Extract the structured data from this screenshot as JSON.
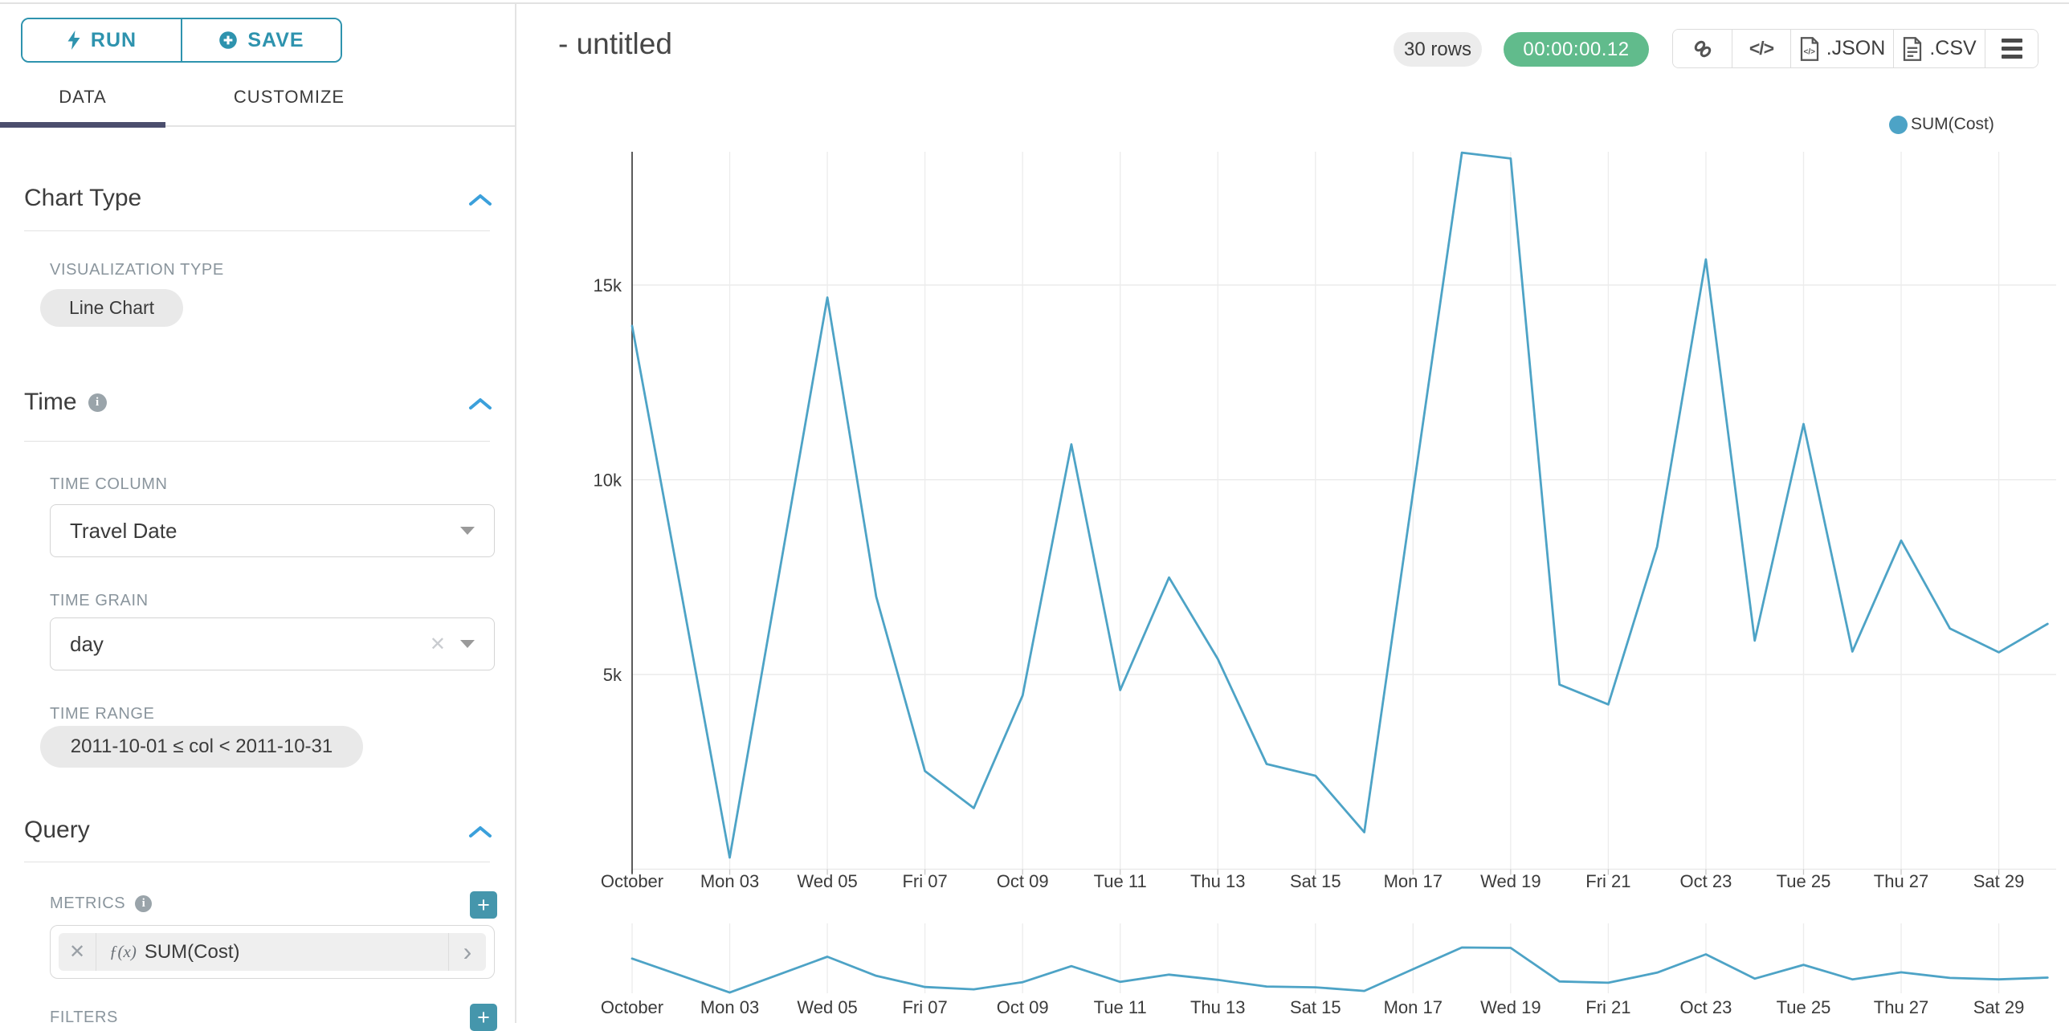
{
  "sidebar": {
    "run_button": "RUN",
    "save_button": "SAVE",
    "tabs": [
      {
        "label": "DATA",
        "active": true
      },
      {
        "label": "CUSTOMIZE",
        "active": false
      }
    ],
    "chart_type_section": {
      "title": "Chart Type",
      "viz_type_label": "VISUALIZATION TYPE",
      "viz_type_value": "Line Chart"
    },
    "time_section": {
      "title": "Time",
      "time_column_label": "TIME COLUMN",
      "time_column_value": "Travel Date",
      "time_grain_label": "TIME GRAIN",
      "time_grain_value": "day",
      "time_range_label": "TIME RANGE",
      "time_range_value": "2011-10-01 ≤ col < 2011-10-31"
    },
    "query_section": {
      "title": "Query",
      "metrics_label": "METRICS",
      "add_button": "+",
      "metric_fx": "ƒ(x)",
      "metric_value": "SUM(Cost)",
      "filters_label": "FILTERS"
    }
  },
  "header": {
    "title": "- untitled",
    "row_count": "30 rows",
    "query_duration": "00:00:00.12",
    "export_json": ".JSON",
    "export_csv": ".CSV"
  },
  "icons": [
    "bolt-icon",
    "plus-circle-icon",
    "chevron-up-icon",
    "info-icon",
    "caret-down-icon",
    "clear-x-icon",
    "chevron-right-icon",
    "link-icon",
    "code-icon",
    "file-json-icon",
    "file-csv-icon",
    "menu-icon",
    "legend-dot"
  ],
  "colors": {
    "accent_teal": "#2e93ae",
    "plus_button_teal": "#4596ac",
    "chevron_blue": "#3ba0db",
    "active_tab_indicator": "#4b4e6d",
    "timer_green": "#61bb8c",
    "line_color": "#4da3c6",
    "pill_gray": "#ececec"
  },
  "chart_data": {
    "type": "line",
    "title": "- untitled",
    "legend_position": "top-right",
    "grid": true,
    "x_axis": {
      "tick_labels": [
        "October",
        "Mon 03",
        "Wed 05",
        "Fri 07",
        "Oct 09",
        "Tue 11",
        "Thu 13",
        "Sat 15",
        "Mon 17",
        "Wed 19",
        "Fri 21",
        "Oct 23",
        "Tue 25",
        "Thu 27",
        "Sat 29"
      ],
      "tick_step_days": 2,
      "domain": [
        "2011-10-01",
        "2011-10-30"
      ]
    },
    "y_axis": {
      "ticks": [
        {
          "label": "5k",
          "value": 5000
        },
        {
          "label": "10k",
          "value": 10000
        },
        {
          "label": "15k",
          "value": 15000
        }
      ],
      "min": 0,
      "max": 18400
    },
    "dates": [
      "2011-10-01",
      "2011-10-02",
      "2011-10-03",
      "2011-10-04",
      "2011-10-05",
      "2011-10-06",
      "2011-10-07",
      "2011-10-08",
      "2011-10-09",
      "2011-10-10",
      "2011-10-11",
      "2011-10-12",
      "2011-10-13",
      "2011-10-14",
      "2011-10-15",
      "2011-10-16",
      "2011-10-17",
      "2011-10-18",
      "2011-10-19",
      "2011-10-20",
      "2011-10-21",
      "2011-10-22",
      "2011-10-23",
      "2011-10-24",
      "2011-10-25",
      "2011-10-26",
      "2011-10-27",
      "2011-10-28",
      "2011-10-29",
      "2011-10-30"
    ],
    "series": [
      {
        "name": "SUM(Cost)",
        "color": "#4da3c6",
        "values": [
          13950,
          7150,
          300,
          7500,
          14680,
          7000,
          2520,
          1570,
          4460,
          10910,
          4600,
          7490,
          5400,
          2700,
          2400,
          950,
          9680,
          18400,
          18250,
          4740,
          4230,
          8280,
          15660,
          5870,
          11430,
          5590,
          8440,
          6180,
          5570,
          6300
        ]
      }
    ],
    "mini_context_chart": {
      "shown": true,
      "labels_repeated": true
    }
  }
}
